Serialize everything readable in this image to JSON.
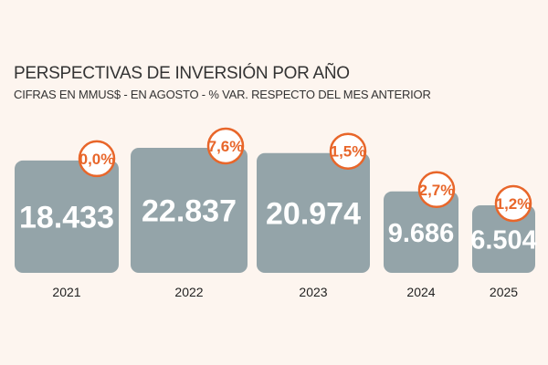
{
  "chart_data": {
    "type": "bar",
    "title": "PERSPECTIVAS DE INVERSIÓN POR AÑO",
    "subtitle": "CIFRAS EN MMUS$ - EN AGOSTO - % VAR.  RESPECTO DEL MES ANTERIOR",
    "categories": [
      "2021",
      "2022",
      "2023",
      "2024",
      "2025"
    ],
    "values": [
      18433,
      22837,
      20974,
      9686,
      6504
    ],
    "value_labels": [
      "18.433",
      "22.837",
      "20.974",
      "9.686",
      "6.504"
    ],
    "pct_labels": [
      "0,0%",
      "7,6%",
      "1,5%",
      "2,7%",
      "1,2%"
    ],
    "colors": {
      "bar": "#94a4a9",
      "badge_border": "#e8662a",
      "badge_fill": "#ffffff",
      "badge_text": "#e8662a",
      "value_text": "#ffffff",
      "background": "#fdf5ef"
    }
  }
}
